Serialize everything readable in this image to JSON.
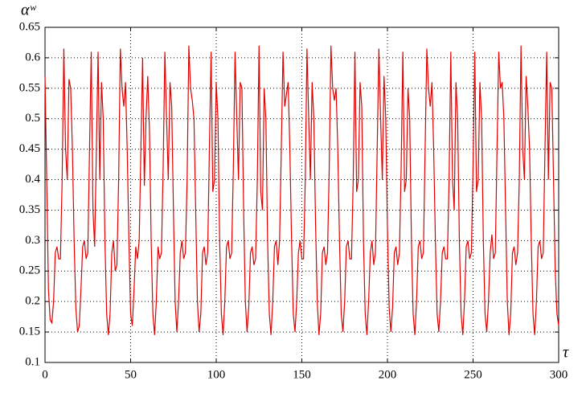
{
  "chart_data": {
    "type": "line",
    "y_label": "αʷ",
    "x_label": "τ",
    "xlim": [
      0,
      300
    ],
    "xticks": [
      0,
      50,
      100,
      150,
      200,
      250,
      300
    ],
    "ylim": [
      0.1,
      0.65
    ],
    "yticks": [
      0.1,
      0.15,
      0.2,
      0.25,
      0.3,
      0.35,
      0.4,
      0.45,
      0.5,
      0.55,
      0.6,
      0.65
    ],
    "grid": true,
    "x": [
      0,
      1,
      2,
      3,
      4,
      5,
      6,
      7,
      8,
      9,
      10,
      11,
      12,
      13,
      14,
      15,
      16,
      17,
      18,
      19,
      20,
      21,
      22,
      23,
      24,
      25,
      26,
      27,
      28,
      29,
      30,
      31,
      32,
      33,
      34,
      35,
      36,
      37,
      38,
      39,
      40,
      41,
      42,
      43,
      44,
      45,
      46,
      47,
      48,
      49,
      50,
      51,
      52,
      53,
      54,
      55,
      56,
      57,
      58,
      59,
      60,
      61,
      62,
      63,
      64,
      65,
      66,
      67,
      68,
      69,
      70,
      71,
      72,
      73,
      74,
      75,
      76,
      77,
      78,
      79,
      80,
      81,
      82,
      83,
      84,
      85,
      86,
      87,
      88,
      89,
      90,
      91,
      92,
      93,
      94,
      95,
      96,
      97,
      98,
      99,
      100,
      101,
      102,
      103,
      104,
      105,
      106,
      107,
      108,
      109,
      110,
      111,
      112,
      113,
      114,
      115,
      116,
      117,
      118,
      119,
      120,
      121,
      122,
      123,
      124,
      125,
      126,
      127,
      128,
      129,
      130,
      131,
      132,
      133,
      134,
      135,
      136,
      137,
      138,
      139,
      140,
      141,
      142,
      143,
      144,
      145,
      146,
      147,
      148,
      149,
      150,
      151,
      152,
      153,
      154,
      155,
      156,
      157,
      158,
      159,
      160,
      161,
      162,
      163,
      164,
      165,
      166,
      167,
      168,
      169,
      170,
      171,
      172,
      173,
      174,
      175,
      176,
      177,
      178,
      179,
      180,
      181,
      182,
      183,
      184,
      185,
      186,
      187,
      188,
      189,
      190,
      191,
      192,
      193,
      194,
      195,
      196,
      197,
      198,
      199,
      200,
      201,
      202,
      203,
      204,
      205,
      206,
      207,
      208,
      209,
      210,
      211,
      212,
      213,
      214,
      215,
      216,
      217,
      218,
      219,
      220,
      221,
      222,
      223,
      224,
      225,
      226,
      227,
      228,
      229,
      230,
      231,
      232,
      233,
      234,
      235,
      236,
      237,
      238,
      239,
      240,
      241,
      242,
      243,
      244,
      245,
      246,
      247,
      248,
      249,
      250,
      251,
      252,
      253,
      254,
      255,
      256,
      257,
      258,
      259,
      260,
      261,
      262,
      263,
      264,
      265,
      266,
      267,
      268,
      269,
      270,
      271,
      272,
      273,
      274,
      275,
      276,
      277,
      278,
      279,
      280,
      281,
      282,
      283,
      284,
      285,
      286,
      287,
      288,
      289,
      290,
      291,
      292,
      293,
      294,
      295,
      296,
      297,
      298,
      299,
      300
    ],
    "series": [
      {
        "color": "#e00000",
        "values": [
          0.57,
          0.4,
          0.22,
          0.17,
          0.165,
          0.2,
          0.28,
          0.29,
          0.27,
          0.27,
          0.4,
          0.615,
          0.45,
          0.4,
          0.565,
          0.55,
          0.45,
          0.3,
          0.19,
          0.15,
          0.16,
          0.22,
          0.29,
          0.3,
          0.27,
          0.28,
          0.45,
          0.61,
          0.35,
          0.29,
          0.45,
          0.61,
          0.4,
          0.56,
          0.5,
          0.3,
          0.18,
          0.145,
          0.18,
          0.28,
          0.3,
          0.25,
          0.26,
          0.4,
          0.615,
          0.55,
          0.52,
          0.56,
          0.45,
          0.3,
          0.18,
          0.16,
          0.22,
          0.29,
          0.27,
          0.3,
          0.45,
          0.6,
          0.39,
          0.5,
          0.57,
          0.48,
          0.3,
          0.18,
          0.145,
          0.2,
          0.29,
          0.27,
          0.28,
          0.42,
          0.61,
          0.5,
          0.4,
          0.56,
          0.52,
          0.35,
          0.2,
          0.15,
          0.2,
          0.28,
          0.3,
          0.27,
          0.28,
          0.4,
          0.62,
          0.55,
          0.53,
          0.5,
          0.35,
          0.2,
          0.15,
          0.18,
          0.28,
          0.29,
          0.26,
          0.28,
          0.45,
          0.61,
          0.38,
          0.4,
          0.56,
          0.5,
          0.3,
          0.18,
          0.145,
          0.2,
          0.29,
          0.3,
          0.27,
          0.28,
          0.42,
          0.61,
          0.5,
          0.4,
          0.56,
          0.55,
          0.35,
          0.2,
          0.15,
          0.19,
          0.28,
          0.29,
          0.26,
          0.27,
          0.4,
          0.62,
          0.38,
          0.35,
          0.55,
          0.5,
          0.3,
          0.18,
          0.145,
          0.2,
          0.29,
          0.3,
          0.26,
          0.3,
          0.45,
          0.61,
          0.52,
          0.54,
          0.56,
          0.45,
          0.3,
          0.18,
          0.15,
          0.2,
          0.28,
          0.3,
          0.27,
          0.27,
          0.4,
          0.615,
          0.5,
          0.4,
          0.56,
          0.5,
          0.33,
          0.2,
          0.145,
          0.18,
          0.28,
          0.29,
          0.26,
          0.28,
          0.42,
          0.62,
          0.55,
          0.53,
          0.55,
          0.45,
          0.3,
          0.18,
          0.15,
          0.2,
          0.29,
          0.3,
          0.27,
          0.27,
          0.4,
          0.61,
          0.38,
          0.4,
          0.56,
          0.52,
          0.3,
          0.18,
          0.145,
          0.2,
          0.28,
          0.3,
          0.26,
          0.28,
          0.45,
          0.615,
          0.5,
          0.4,
          0.57,
          0.5,
          0.32,
          0.19,
          0.15,
          0.19,
          0.28,
          0.29,
          0.26,
          0.28,
          0.42,
          0.61,
          0.38,
          0.4,
          0.55,
          0.5,
          0.3,
          0.18,
          0.145,
          0.2,
          0.29,
          0.3,
          0.27,
          0.28,
          0.45,
          0.615,
          0.55,
          0.52,
          0.56,
          0.45,
          0.3,
          0.18,
          0.15,
          0.2,
          0.28,
          0.29,
          0.27,
          0.27,
          0.4,
          0.61,
          0.4,
          0.35,
          0.56,
          0.5,
          0.3,
          0.18,
          0.145,
          0.2,
          0.29,
          0.3,
          0.27,
          0.28,
          0.42,
          0.61,
          0.38,
          0.4,
          0.56,
          0.5,
          0.3,
          0.18,
          0.15,
          0.2,
          0.28,
          0.31,
          0.27,
          0.28,
          0.45,
          0.61,
          0.55,
          0.56,
          0.5,
          0.35,
          0.2,
          0.145,
          0.18,
          0.28,
          0.29,
          0.26,
          0.28,
          0.4,
          0.62,
          0.45,
          0.4,
          0.57,
          0.52,
          0.45,
          0.3,
          0.18,
          0.145,
          0.2,
          0.29,
          0.3,
          0.27,
          0.28,
          0.45,
          0.61,
          0.4,
          0.56,
          0.55,
          0.4,
          0.25,
          0.18,
          0.16
        ]
      }
    ]
  }
}
